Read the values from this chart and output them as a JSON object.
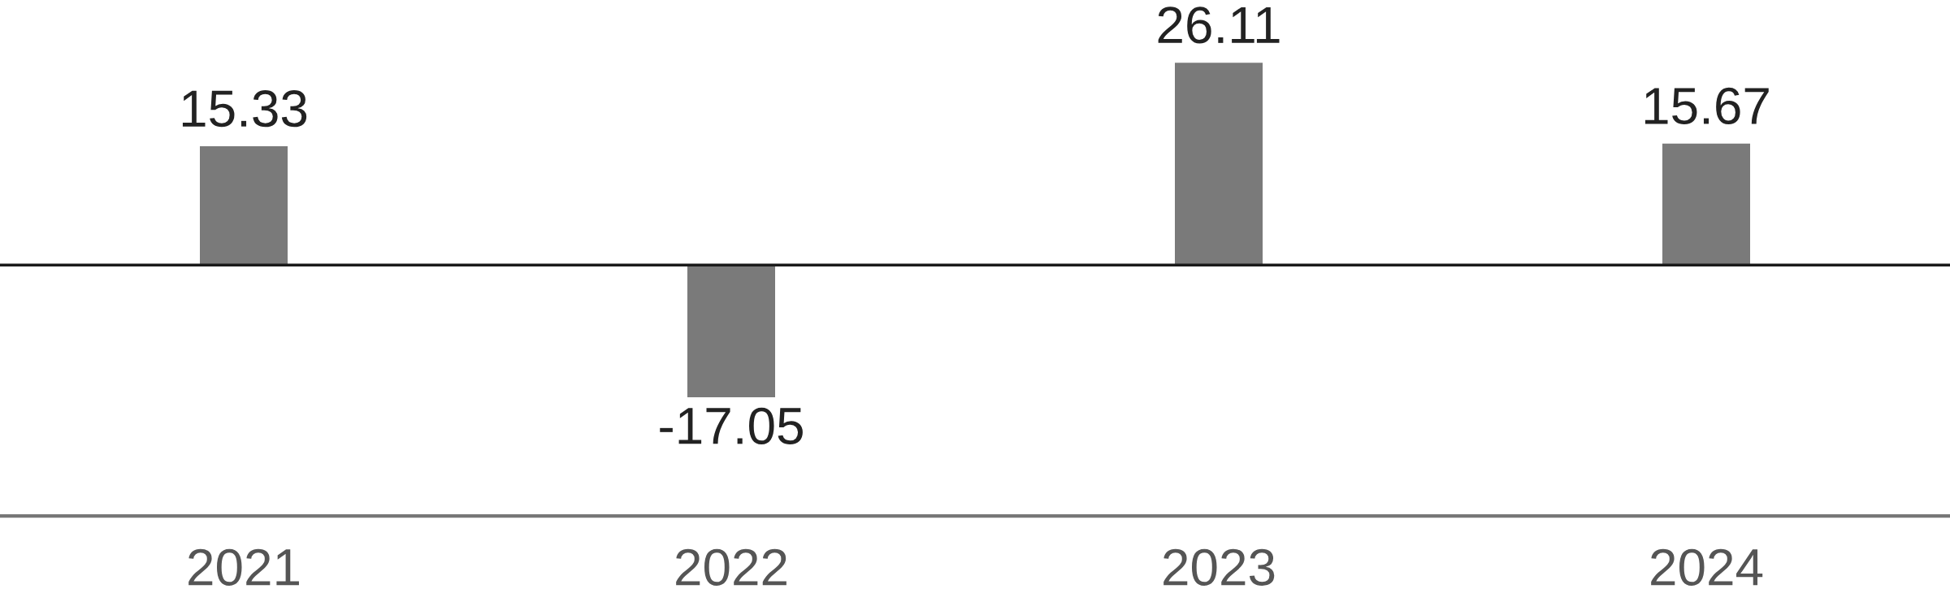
{
  "chart_data": {
    "type": "bar",
    "categories": [
      "2021",
      "2022",
      "2023",
      "2024"
    ],
    "values": [
      15.33,
      -17.05,
      26.11,
      15.67
    ],
    "color": "#7a7a7a",
    "data_labels": true,
    "grid": false,
    "legend": false
  }
}
